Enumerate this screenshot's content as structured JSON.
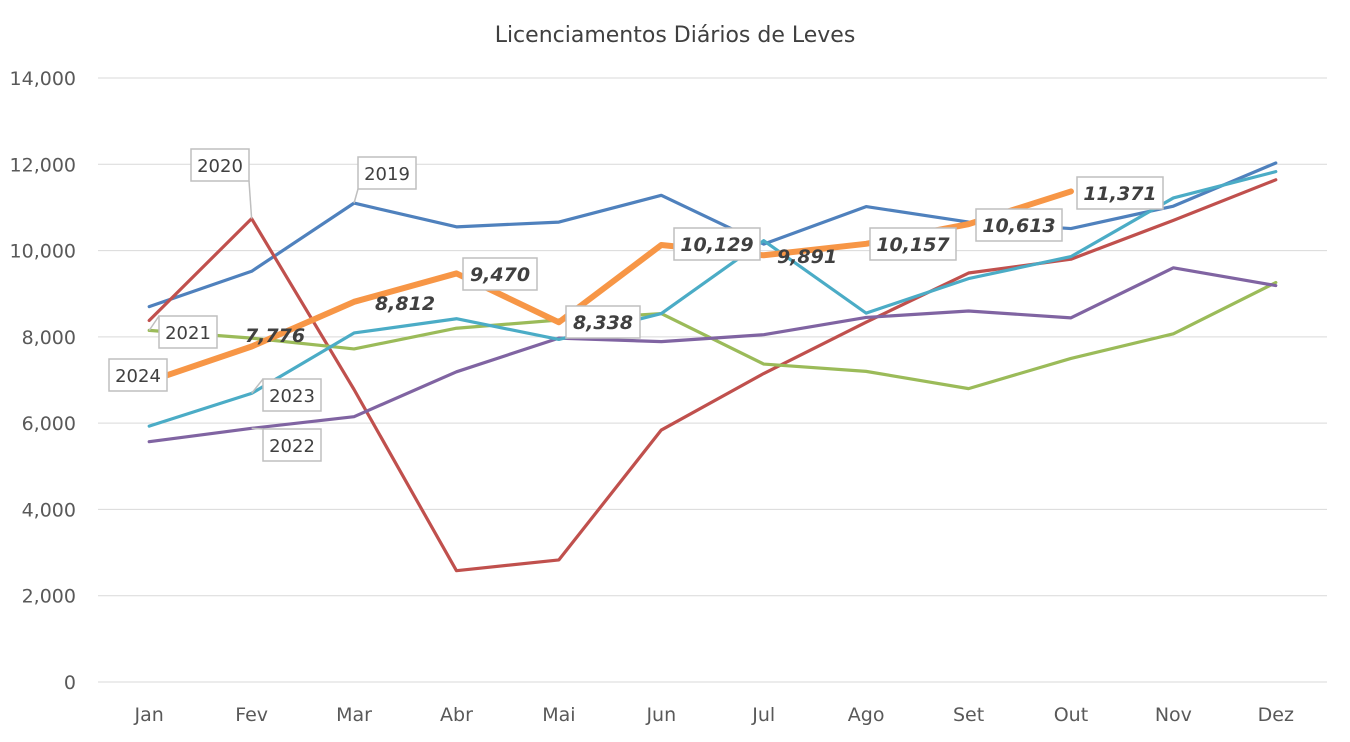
{
  "chart_data": {
    "type": "line",
    "title": "Licenciamentos Diários de Leves",
    "xlabel": "",
    "ylabel": "",
    "categories": [
      "Jan",
      "Fev",
      "Mar",
      "Abr",
      "Mai",
      "Jun",
      "Jul",
      "Ago",
      "Set",
      "Out",
      "Nov",
      "Dez"
    ],
    "ylim": [
      0,
      14000
    ],
    "yticks": [
      0,
      2000,
      4000,
      6000,
      8000,
      10000,
      12000,
      14000
    ],
    "ytick_labels": [
      "0",
      "2,000",
      "4,000",
      "6,000",
      "8,000",
      "10,000",
      "12,000",
      "14,000"
    ],
    "grid": true,
    "legend": "none",
    "series": [
      {
        "name": "2019",
        "color": "#4f81bd",
        "values": [
          8700,
          9520,
          11100,
          10550,
          10660,
          11280,
          10150,
          11020,
          10660,
          10510,
          11030,
          12030
        ]
      },
      {
        "name": "2020",
        "color": "#c0504d",
        "values": [
          8380,
          10740,
          6780,
          2580,
          2830,
          5840,
          7150,
          8340,
          9480,
          9800,
          10700,
          11640
        ]
      },
      {
        "name": "2021",
        "color": "#9bbb59",
        "values": [
          8150,
          7970,
          7720,
          8200,
          8390,
          8540,
          7370,
          7200,
          6800,
          7500,
          8070,
          9260
        ]
      },
      {
        "name": "2022",
        "color": "#8064a2",
        "values": [
          5570,
          5880,
          6150,
          7190,
          7970,
          7890,
          8050,
          8450,
          8600,
          8440,
          9600,
          9190
        ]
      },
      {
        "name": "2023",
        "color": "#4bacc6",
        "values": [
          5930,
          6690,
          8090,
          8420,
          7940,
          8540,
          10230,
          8550,
          9350,
          9860,
          11220,
          11830
        ]
      },
      {
        "name": "2024",
        "color": "#f79646",
        "values": [
          6970,
          7776,
          8812,
          9470,
          8338,
          10129,
          9891,
          10157,
          10613,
          11371,
          null,
          null
        ]
      }
    ],
    "series_labels": [
      "2019",
      "2020",
      "2021",
      "2022",
      "2023",
      "2024"
    ],
    "data_labels": [
      "7,776",
      "8,812",
      "9,470",
      "8,338",
      "10,129",
      "9,891",
      "10,157",
      "10,613",
      "11,371"
    ]
  }
}
